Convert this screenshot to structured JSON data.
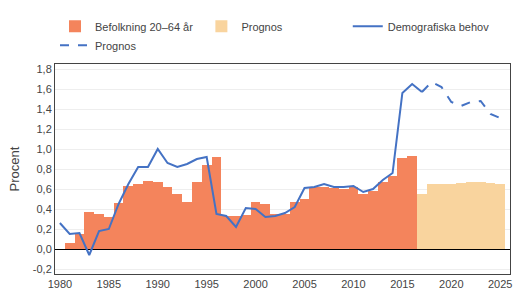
{
  "chart_data": {
    "type": "bar",
    "y_label": "Procent",
    "series": [
      {
        "name": "Befolkning 20–64 år",
        "type": "bar",
        "color": "#F4845C",
        "x": [
          1981,
          1982,
          1983,
          1984,
          1985,
          1986,
          1987,
          1988,
          1989,
          1990,
          1991,
          1992,
          1993,
          1994,
          1995,
          1996,
          1997,
          1998,
          1999,
          2000,
          2001,
          2002,
          2003,
          2004,
          2005,
          2006,
          2007,
          2008,
          2009,
          2010,
          2011,
          2012,
          2013,
          2014,
          2015,
          2016
        ],
        "values": [
          0.06,
          0.15,
          0.37,
          0.35,
          0.32,
          0.46,
          0.63,
          0.65,
          0.68,
          0.67,
          0.62,
          0.55,
          0.47,
          0.67,
          0.84,
          0.92,
          0.33,
          0.33,
          0.34,
          0.47,
          0.45,
          0.35,
          0.35,
          0.47,
          0.5,
          0.62,
          0.62,
          0.61,
          0.6,
          0.62,
          0.55,
          0.58,
          0.67,
          0.73,
          0.91,
          0.93
        ]
      },
      {
        "name": "Prognos",
        "type": "bar",
        "color": "#F9D49E",
        "x": [
          2017,
          2018,
          2019,
          2020,
          2021,
          2022,
          2023,
          2024,
          2025
        ],
        "values": [
          0.55,
          0.65,
          0.65,
          0.65,
          0.66,
          0.67,
          0.67,
          0.66,
          0.65
        ]
      },
      {
        "name": "Demografiska behov",
        "type": "line",
        "color": "#4472C4",
        "line_style": "solid",
        "x": [
          1980,
          1981,
          1982,
          1983,
          1984,
          1985,
          1986,
          1987,
          1988,
          1989,
          1990,
          1991,
          1992,
          1993,
          1994,
          1995,
          1996,
          1997,
          1998,
          1999,
          2000,
          2001,
          2002,
          2003,
          2004,
          2005,
          2006,
          2007,
          2008,
          2009,
          2010,
          2011,
          2012,
          2013,
          2014,
          2015,
          2016,
          2017
        ],
        "values": [
          0.26,
          0.15,
          0.16,
          -0.06,
          0.18,
          0.2,
          0.45,
          0.65,
          0.82,
          0.82,
          1.0,
          0.86,
          0.82,
          0.85,
          0.9,
          0.92,
          0.35,
          0.33,
          0.22,
          0.41,
          0.4,
          0.32,
          0.33,
          0.36,
          0.42,
          0.61,
          0.62,
          0.65,
          0.62,
          0.62,
          0.63,
          0.57,
          0.6,
          0.69,
          0.76,
          1.56,
          1.65,
          1.57
        ]
      },
      {
        "name": "Prognos",
        "type": "line",
        "color": "#4472C4",
        "line_style": "dashed",
        "x": [
          2017,
          2018,
          2019,
          2020,
          2021,
          2022,
          2023,
          2024,
          2025
        ],
        "values": [
          1.57,
          1.67,
          1.62,
          1.47,
          1.43,
          1.47,
          1.48,
          1.35,
          1.31
        ]
      }
    ],
    "xlim": [
      1979.5,
      2026.0
    ],
    "xticks": [
      1980,
      1985,
      1990,
      1995,
      2000,
      2005,
      2010,
      2015,
      2020,
      2025
    ],
    "ylim": [
      -0.25,
      1.85
    ],
    "yticks": [
      {
        "value": -0.2,
        "label": "-0,2"
      },
      {
        "value": 0.0,
        "label": "0,0"
      },
      {
        "value": 0.2,
        "label": "0,2"
      },
      {
        "value": 0.4,
        "label": "0,4"
      },
      {
        "value": 0.6,
        "label": "0,6"
      },
      {
        "value": 0.8,
        "label": "0,8"
      },
      {
        "value": 1.0,
        "label": "1,0"
      },
      {
        "value": 1.2,
        "label": "1,2"
      },
      {
        "value": 1.4,
        "label": "1,4"
      },
      {
        "value": 1.6,
        "label": "1,6"
      },
      {
        "value": 1.8,
        "label": "1,8"
      }
    ],
    "grid": "y",
    "legend": "upper left"
  }
}
